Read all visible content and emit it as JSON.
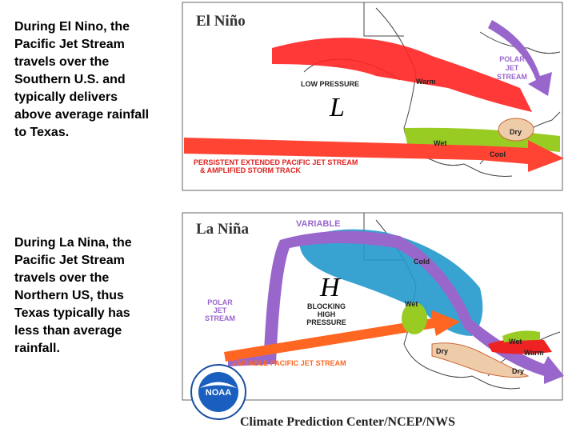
{
  "slide": {
    "el_nino_text": [
      "During El Nino, the",
      "Pacific Jet Stream",
      "travels over the",
      "Southern U.S. and",
      "typically delivers",
      "above average rainfall",
      "to Texas."
    ],
    "la_nina_text": [
      "During La Nina, the",
      "Pacific Jet Stream",
      "travels over the",
      "Northern US, thus",
      "Texas typically has",
      "less than average",
      "rainfall."
    ],
    "el_nino_map": {
      "title": "El Niño",
      "polar_jet": [
        "POLAR",
        "JET",
        "STREAM"
      ],
      "low_pressure": "LOW PRESSURE",
      "low_symbol": "L",
      "warm": "Warm",
      "dry": "Dry",
      "wet": "Wet",
      "cool": "Cool",
      "jet_caption": [
        "PERSISTENT EXTENDED PACIFIC JET STREAM",
        "& AMPLIFIED STORM TRACK"
      ]
    },
    "la_nina_map": {
      "title": "La Niña",
      "variable": "VARIABLE",
      "cold": "Cold",
      "high_symbol": "H",
      "blocking": [
        "BLOCKING",
        "HIGH",
        "PRESSURE"
      ],
      "polar_jet": [
        "POLAR",
        "JET",
        "STREAM"
      ],
      "wet_nw": "Wet",
      "dry_sw": "Dry",
      "wet_se": "Wet",
      "warm": "Warm",
      "dry_s": "Dry",
      "jet_caption": "VARIABLE PACIFIC JET STREAM"
    },
    "footer": {
      "logo": "NOAA",
      "credit": "Climate Prediction Center/NCEP/NWS"
    }
  }
}
